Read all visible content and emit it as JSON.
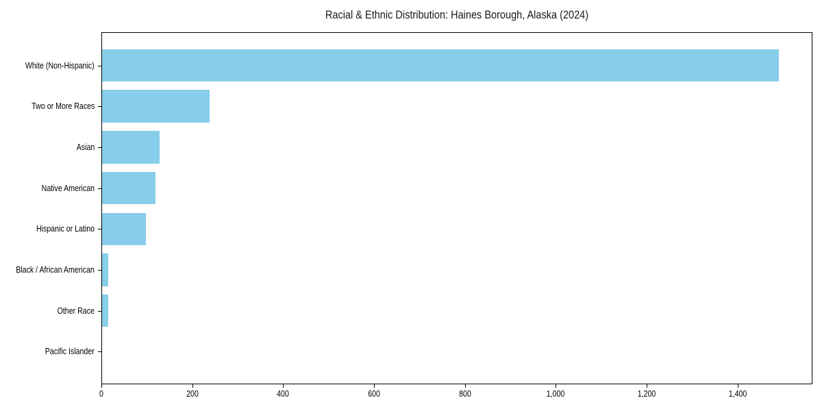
{
  "chart_data": {
    "type": "bar",
    "orientation": "horizontal",
    "title": "Racial & Ethnic Distribution: Haines Borough, Alaska (2024)",
    "categories": [
      "White (Non-Hispanic)",
      "Two or More Races",
      "Asian",
      "Native American",
      "Hispanic or Latino",
      "Black / African American",
      "Other Race",
      "Pacific Islander"
    ],
    "values": [
      1490,
      236,
      126,
      117,
      96,
      14,
      13,
      0
    ],
    "xlabel": "",
    "ylabel": "",
    "xlim": [
      0,
      1565
    ],
    "x_ticks": [
      0,
      200,
      400,
      600,
      800,
      1000,
      1200,
      1400
    ],
    "x_tick_labels": [
      "0",
      "200",
      "400",
      "600",
      "800",
      "1,000",
      "1,200",
      "1,400"
    ],
    "bar_color": "#87CEEB",
    "axis_color": "#000000",
    "background": "#FFFFFF",
    "grid": false,
    "legend": null
  }
}
